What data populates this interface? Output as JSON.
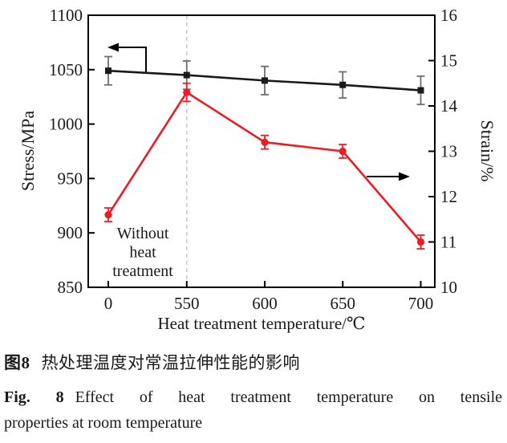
{
  "figure": {
    "caption_zh": {
      "label": "图8",
      "text": "热处理温度对常温拉伸性能的影响"
    },
    "caption_en": {
      "label": "Fig. 8",
      "text": "Effect of heat treatment temperature on tensile",
      "text2": "properties at room temperature"
    }
  },
  "chart_data": {
    "type": "line",
    "x_categories": [
      "0",
      "550",
      "600",
      "650",
      "700"
    ],
    "xlabel": "Heat treatment temperature/℃",
    "left_axis": {
      "label": "Stress/MPa",
      "range": [
        850,
        1100
      ],
      "ticks": [
        "850",
        "900",
        "950",
        "1000",
        "1050",
        "1100"
      ]
    },
    "right_axis": {
      "label": "Strain/%",
      "range": [
        10,
        16
      ],
      "ticks": [
        "10",
        "11",
        "12",
        "13",
        "14",
        "15",
        "16"
      ]
    },
    "series": [
      {
        "name": "Stress",
        "axis": "left",
        "color": "#1a1a1a",
        "error_color": "#6e6e6e",
        "marker": "square",
        "values": [
          1049,
          1045,
          1040,
          1036,
          1031
        ],
        "errors": [
          13,
          13,
          13,
          12,
          13
        ]
      },
      {
        "name": "Strain",
        "axis": "right",
        "color": "#ed1c24",
        "error_color": "#ed1c24",
        "marker": "circle",
        "values": [
          11.6,
          14.3,
          13.2,
          13.0,
          11.0
        ],
        "errors": [
          0.15,
          0.2,
          0.15,
          0.15,
          0.15
        ]
      }
    ],
    "annotations": {
      "no_heat_treatment_label": {
        "lines": [
          "Without",
          "heat",
          "treatment"
        ],
        "at_category": "0"
      },
      "dashed_guideline_at": "550",
      "stress_axis_arrow": "left",
      "strain_axis_arrow": "right"
    },
    "grid": false,
    "legend": false
  }
}
